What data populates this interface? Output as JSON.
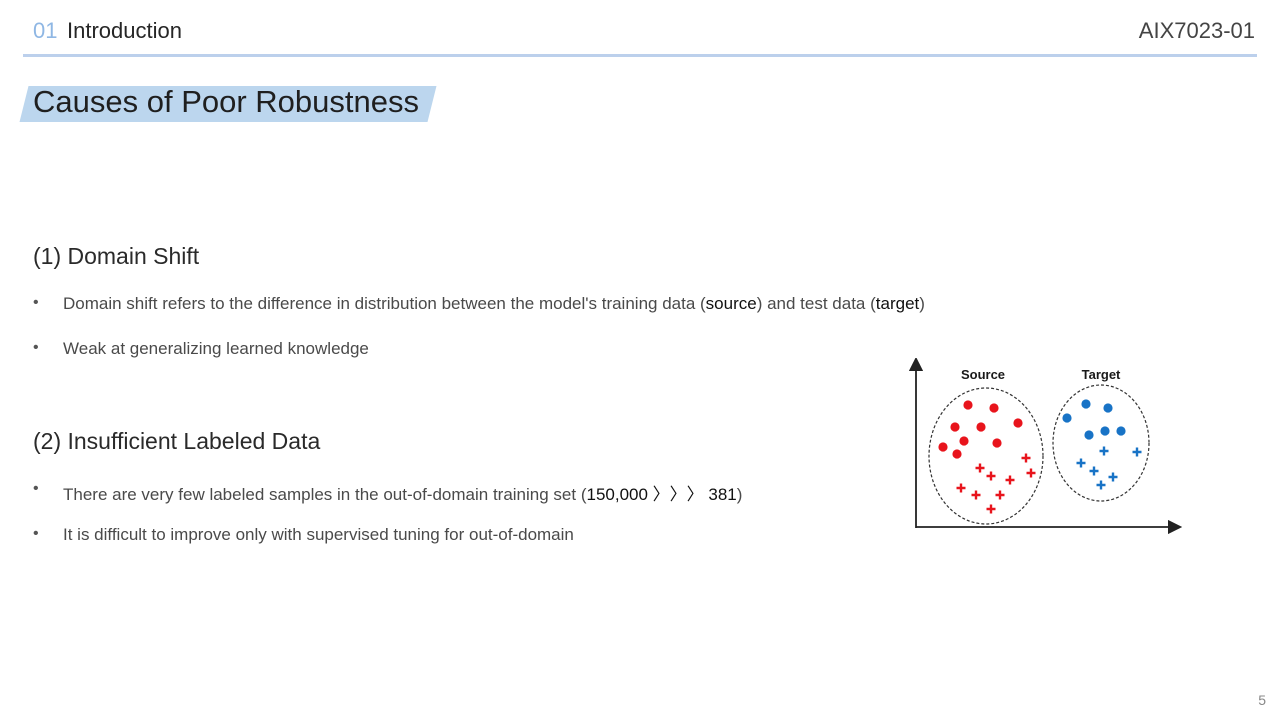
{
  "header": {
    "section_number": "01",
    "section_title": "Introduction",
    "course_code": "AIX7023-01"
  },
  "slide": {
    "title": "Causes of Poor Robustness",
    "page_number": "5"
  },
  "sections": [
    {
      "heading": "(1) Domain Shift",
      "bullets": [
        {
          "before": "Domain shift refers to the difference in distribution between the model's training data (",
          "em1": "source",
          "middle": ") and test data (",
          "em2": "target",
          "after": ")"
        },
        {
          "text": "Weak at generalizing learned knowledge"
        }
      ]
    },
    {
      "heading": "(2) Insufficient Labeled Data",
      "bullets": [
        {
          "before": "There are very few labeled samples in the out-of-domain training set (",
          "em1": "150,000 〉〉〉 381",
          "after": ")"
        },
        {
          "text": "It is difficult to improve only with supervised tuning for out-of-domain"
        }
      ]
    }
  ],
  "bullet_glyph": "•",
  "figure": {
    "source_label": "Source",
    "target_label": "Target",
    "colors": {
      "source": "#e8141c",
      "target": "#1873c6"
    },
    "source_circles": 9,
    "source_crosses": 9,
    "target_circles": 7,
    "target_crosses": 6
  }
}
